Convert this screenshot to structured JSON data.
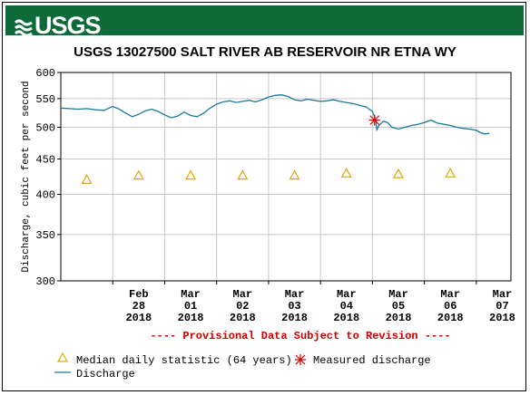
{
  "header": {
    "logo_text": "USGS",
    "title": "USGS 13027500 SALT RIVER AB RESERVOIR NR ETNA WY"
  },
  "colors": {
    "banner": "#0d6b3a",
    "discharge_line": "#1b7a9a",
    "median_marker": "#e0a800",
    "measured_marker": "#cc0000",
    "provisional_text": "#cc0000",
    "grid": "#c8c8c8"
  },
  "chart_data": {
    "type": "line",
    "title": "USGS 13027500 SALT RIVER AB RESERVOIR NR ETNA WY",
    "ylabel": "Discharge, cubic feet per second",
    "xlabel": "",
    "y_scale": "log",
    "ylim": [
      300,
      600
    ],
    "y_ticks": [
      300,
      350,
      400,
      450,
      500,
      550,
      600
    ],
    "x_ticks": [
      {
        "date": "2018-02-28",
        "label": [
          "Feb",
          "28",
          "2018"
        ]
      },
      {
        "date": "2018-03-01",
        "label": [
          "Mar",
          "01",
          "2018"
        ]
      },
      {
        "date": "2018-03-02",
        "label": [
          "Mar",
          "02",
          "2018"
        ]
      },
      {
        "date": "2018-03-03",
        "label": [
          "Mar",
          "03",
          "2018"
        ]
      },
      {
        "date": "2018-03-04",
        "label": [
          "Mar",
          "04",
          "2018"
        ]
      },
      {
        "date": "2018-03-05",
        "label": [
          "Mar",
          "05",
          "2018"
        ]
      },
      {
        "date": "2018-03-06",
        "label": [
          "Mar",
          "06",
          "2018"
        ]
      },
      {
        "date": "2018-03-07",
        "label": [
          "Mar",
          "07",
          "2018"
        ]
      }
    ],
    "grid": true,
    "annotation": "---- Provisional Data Subject to Revision ----",
    "series": [
      {
        "name": "Discharge",
        "kind": "line",
        "points": [
          [
            "2018-02-27T00:00",
            533
          ],
          [
            "2018-02-27T04:00",
            532
          ],
          [
            "2018-02-27T08:00",
            531
          ],
          [
            "2018-02-27T12:00",
            532
          ],
          [
            "2018-02-27T16:00",
            530
          ],
          [
            "2018-02-27T20:00",
            529
          ],
          [
            "2018-02-28T00:00",
            536
          ],
          [
            "2018-02-28T03:00",
            531
          ],
          [
            "2018-02-28T06:00",
            524
          ],
          [
            "2018-02-28T09:00",
            518
          ],
          [
            "2018-02-28T12:00",
            522
          ],
          [
            "2018-02-28T15:00",
            528
          ],
          [
            "2018-02-28T18:00",
            531
          ],
          [
            "2018-02-28T21:00",
            527
          ],
          [
            "2018-03-01T00:00",
            521
          ],
          [
            "2018-03-01T03:00",
            516
          ],
          [
            "2018-03-01T06:00",
            519
          ],
          [
            "2018-03-01T09:00",
            526
          ],
          [
            "2018-03-01T12:00",
            520
          ],
          [
            "2018-03-01T15:00",
            518
          ],
          [
            "2018-03-01T18:00",
            524
          ],
          [
            "2018-03-01T21:00",
            533
          ],
          [
            "2018-03-02T00:00",
            540
          ],
          [
            "2018-03-02T03:00",
            544
          ],
          [
            "2018-03-02T06:00",
            546
          ],
          [
            "2018-03-02T09:00",
            543
          ],
          [
            "2018-03-02T12:00",
            545
          ],
          [
            "2018-03-02T15:00",
            547
          ],
          [
            "2018-03-02T18:00",
            544
          ],
          [
            "2018-03-02T21:00",
            548
          ],
          [
            "2018-03-03T00:00",
            553
          ],
          [
            "2018-03-03T03:00",
            556
          ],
          [
            "2018-03-03T06:00",
            557
          ],
          [
            "2018-03-03T09:00",
            554
          ],
          [
            "2018-03-03T12:00",
            548
          ],
          [
            "2018-03-03T15:00",
            546
          ],
          [
            "2018-03-03T18:00",
            549
          ],
          [
            "2018-03-03T21:00",
            547
          ],
          [
            "2018-03-04T00:00",
            545
          ],
          [
            "2018-03-04T03:00",
            546
          ],
          [
            "2018-03-04T06:00",
            548
          ],
          [
            "2018-03-04T09:00",
            545
          ],
          [
            "2018-03-04T12:00",
            543
          ],
          [
            "2018-03-04T15:00",
            541
          ],
          [
            "2018-03-04T18:00",
            538
          ],
          [
            "2018-03-04T21:00",
            535
          ],
          [
            "2018-03-05T00:00",
            527
          ],
          [
            "2018-03-05T01:30",
            512
          ],
          [
            "2018-03-05T02:00",
            496
          ],
          [
            "2018-03-05T03:00",
            503
          ],
          [
            "2018-03-05T05:00",
            510
          ],
          [
            "2018-03-05T07:00",
            508
          ],
          [
            "2018-03-05T09:00",
            500
          ],
          [
            "2018-03-05T12:00",
            497
          ],
          [
            "2018-03-05T15:00",
            500
          ],
          [
            "2018-03-05T18:00",
            503
          ],
          [
            "2018-03-05T21:00",
            505
          ],
          [
            "2018-03-06T00:00",
            508
          ],
          [
            "2018-03-06T03:00",
            512
          ],
          [
            "2018-03-06T06:00",
            507
          ],
          [
            "2018-03-06T09:00",
            505
          ],
          [
            "2018-03-06T12:00",
            503
          ],
          [
            "2018-03-06T15:00",
            500
          ],
          [
            "2018-03-06T18:00",
            498
          ],
          [
            "2018-03-06T21:00",
            497
          ],
          [
            "2018-03-07T00:00",
            495
          ],
          [
            "2018-03-07T02:00",
            491
          ],
          [
            "2018-03-07T04:00",
            489
          ],
          [
            "2018-03-07T06:00",
            490
          ]
        ]
      },
      {
        "name": "Median daily statistic (64 years)",
        "kind": "marker",
        "points": [
          [
            "2018-02-27T12:00",
            420
          ],
          [
            "2018-02-28T12:00",
            426
          ],
          [
            "2018-03-01T12:00",
            426
          ],
          [
            "2018-03-02T12:00",
            426
          ],
          [
            "2018-03-03T12:00",
            426
          ],
          [
            "2018-03-04T12:00",
            429
          ],
          [
            "2018-03-05T12:00",
            428
          ],
          [
            "2018-03-06T12:00",
            429
          ]
        ]
      },
      {
        "name": "Measured discharge",
        "kind": "marker",
        "points": [
          [
            "2018-03-05T01:00",
            512
          ]
        ]
      }
    ]
  },
  "legend": {
    "median_label": "Median daily statistic (64 years)",
    "measured_label": "Measured discharge",
    "discharge_label": "Discharge"
  }
}
